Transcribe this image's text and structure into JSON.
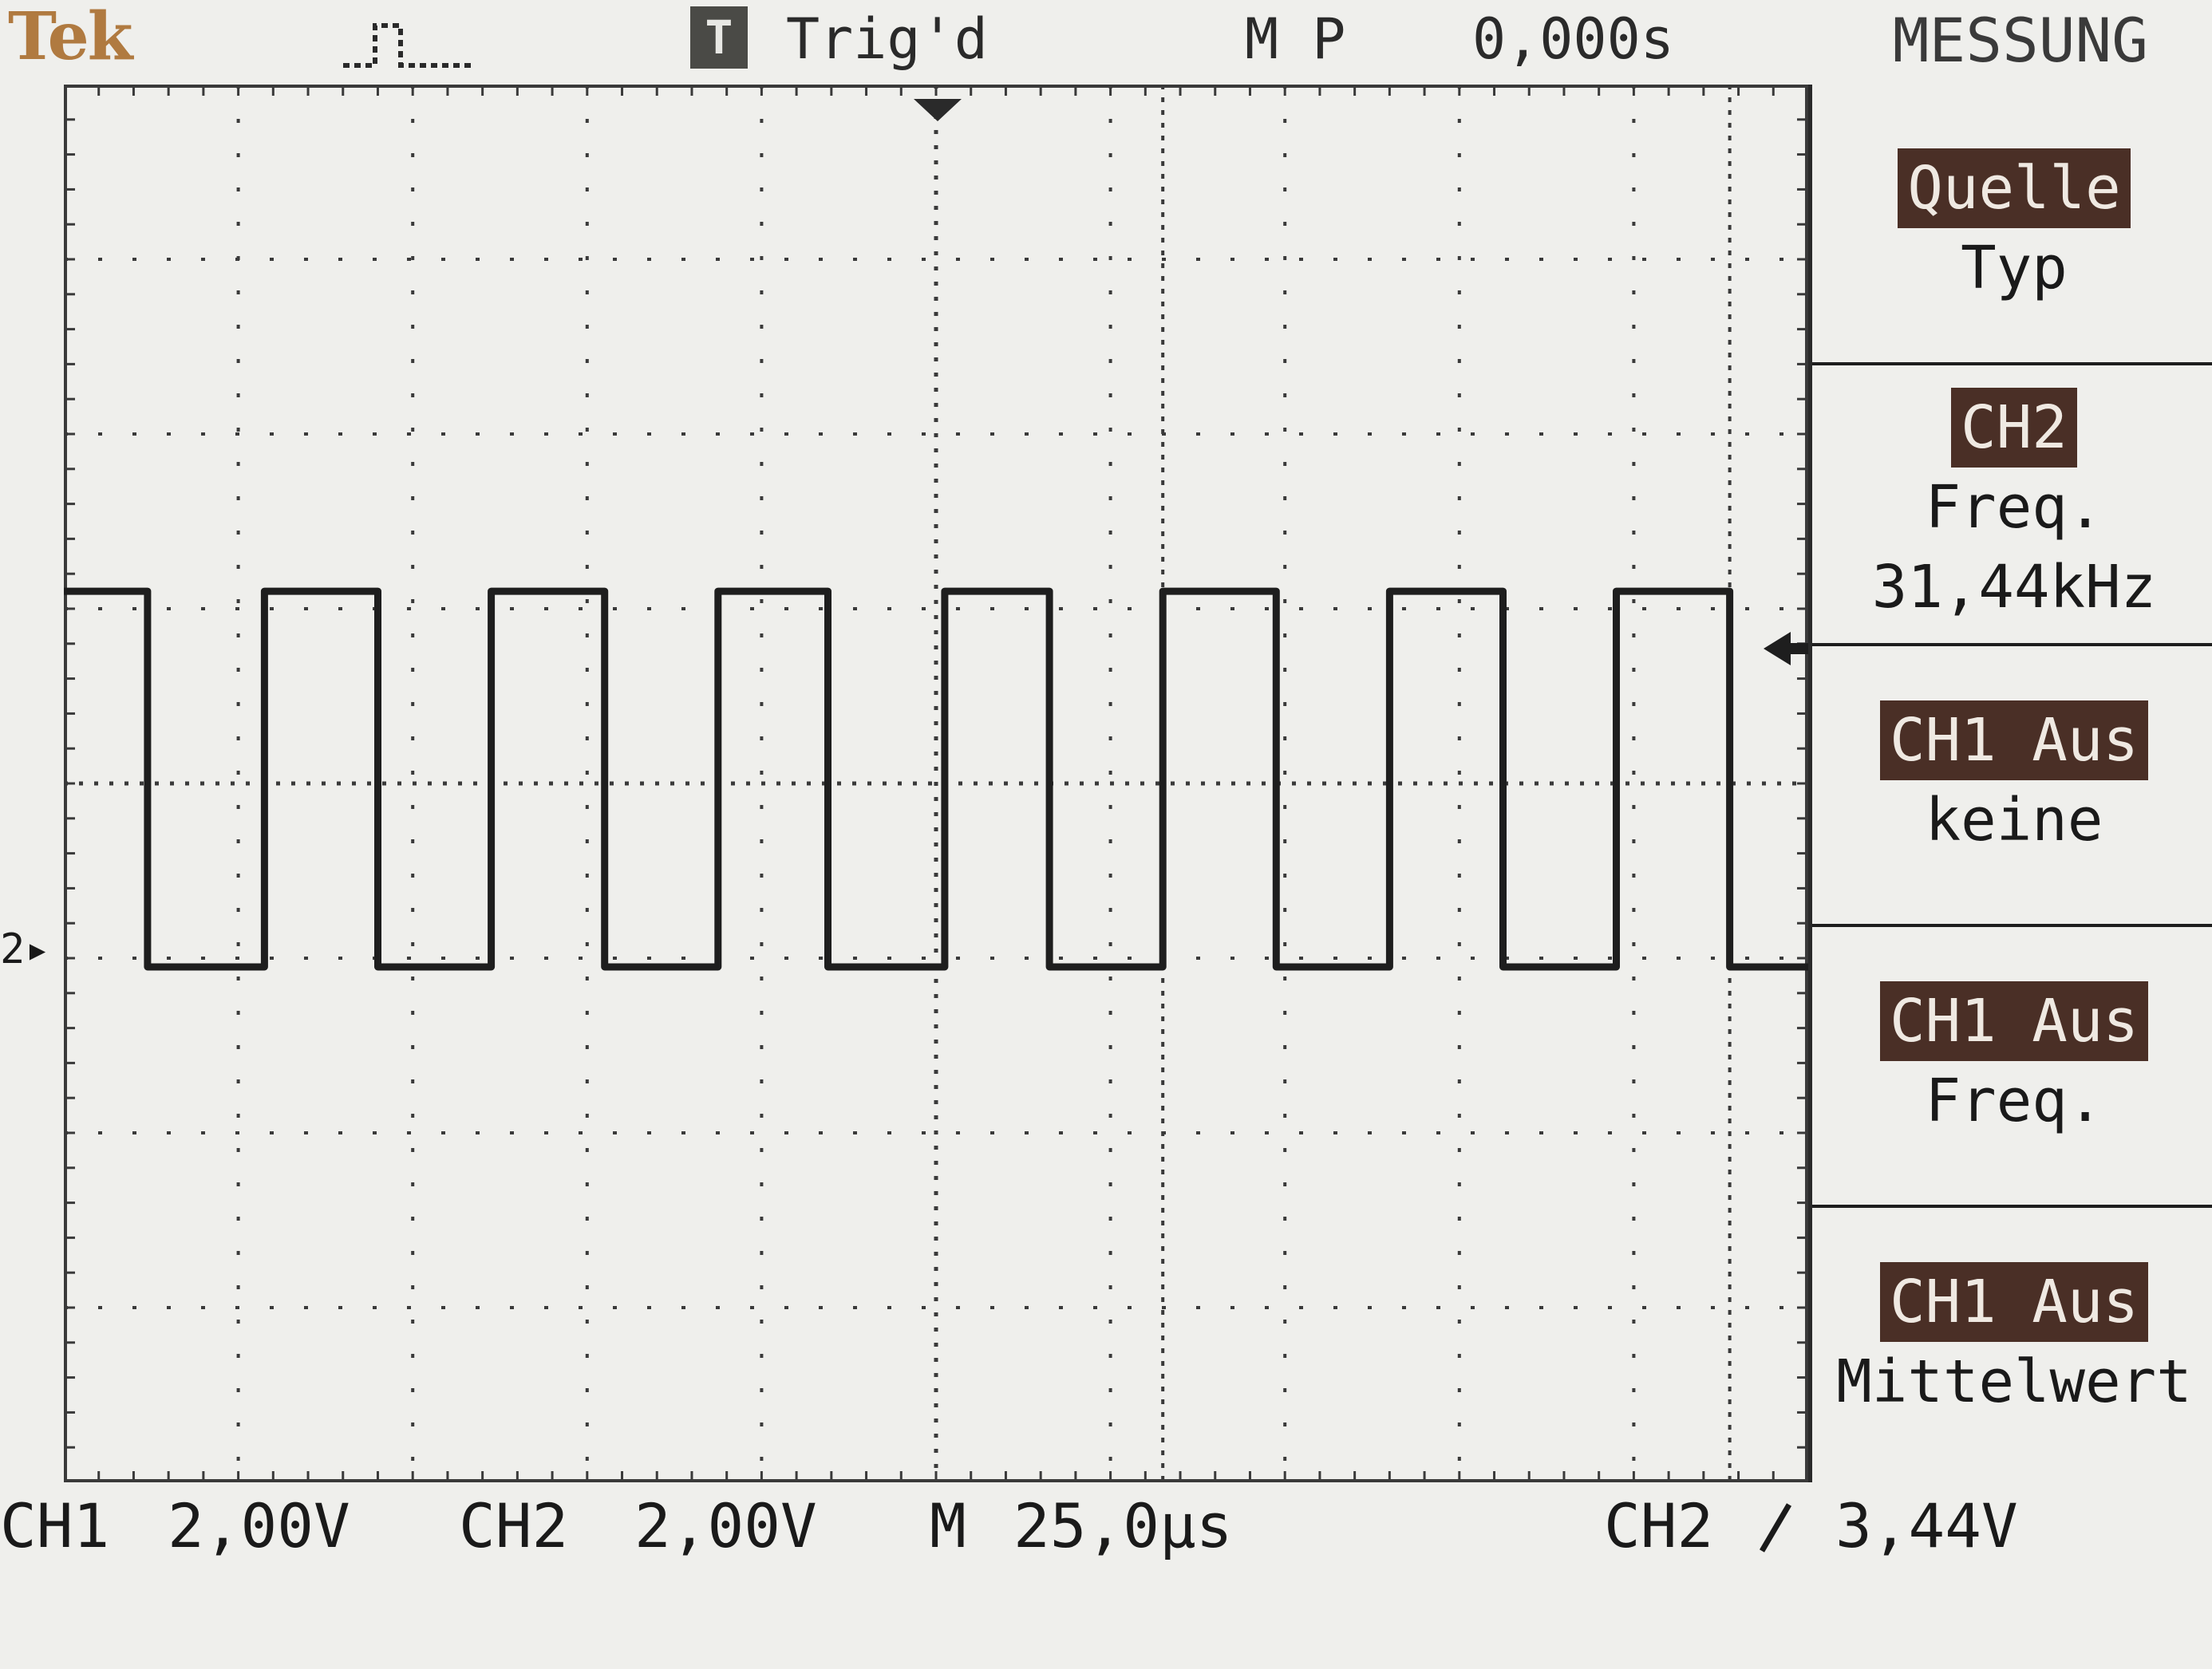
{
  "header": {
    "brand": "Tek",
    "acq_icon": "acquisition-pulse-icon",
    "trig_badge": "T",
    "trig_status": "Trig'd",
    "position": "M P",
    "position_value": "0,000s",
    "menu_title": "MESSUNG"
  },
  "menu": {
    "items": [
      {
        "highlight": "Quelle",
        "sub": "Typ"
      },
      {
        "highlight": "CH2",
        "sub": "Freq.",
        "value": "31,44kHz"
      },
      {
        "highlight": "CH1 Aus",
        "sub": "keine"
      },
      {
        "highlight": "CH1 Aus",
        "sub": "Freq."
      },
      {
        "highlight": "CH1 Aus",
        "sub": "Mittelwert"
      }
    ]
  },
  "status": {
    "ch1_label": "CH1",
    "ch1_scale": "2,00V",
    "ch2_label": "CH2",
    "ch2_scale": "2,00V",
    "timebase_label": "M",
    "timebase": "25,0µs",
    "trigger_source": "CH2",
    "trigger_slope_icon": "rising-edge-icon",
    "trigger_level": "3,44V",
    "channel_marker": "2"
  },
  "colors": {
    "screen": "#efefec",
    "grid": "#3a3a3a",
    "trace": "#1e1e1e",
    "brand": "#b07a40",
    "highlight_bg": "#4a2f26"
  },
  "chart_data": {
    "type": "line",
    "title": "",
    "xlabel": "",
    "ylabel": "",
    "frequency_khz": 31.44,
    "x_units": "divisions",
    "y_units": "divisions",
    "xlim": [
      0,
      10
    ],
    "ylim": [
      -4,
      4
    ],
    "series": [
      {
        "values_description": "square wave",
        "x": [
          0,
          0.48,
          0.48,
          1.15,
          1.15,
          1.8,
          1.8,
          2.45,
          2.45,
          3.1,
          3.1,
          3.75,
          3.75,
          4.38,
          4.38,
          5.05,
          5.05,
          5.65,
          5.65,
          6.3,
          6.3,
          6.95,
          6.95,
          7.6,
          7.6,
          8.25,
          8.25,
          8.9,
          8.9,
          9.55,
          9.55,
          10
        ],
        "y": [
          1.1,
          1.1,
          -1.05,
          -1.05,
          1.1,
          1.1,
          -1.05,
          -1.05,
          1.1,
          1.1,
          -1.05,
          -1.05,
          1.1,
          1.1,
          -1.05,
          -1.05,
          1.1,
          1.1,
          -1.05,
          -1.05,
          1.1,
          1.1,
          -1.05,
          -1.05,
          1.1,
          1.1,
          -1.05,
          -1.05,
          1.1,
          1.1,
          -1.05,
          -1.05
        ]
      }
    ]
  }
}
